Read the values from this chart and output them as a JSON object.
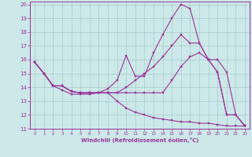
{
  "background_color": "#cce8e8",
  "grid_color": "#aacccc",
  "line_color": "#993399",
  "xlabel": "Windchill (Refroidissement éolien,°C)",
  "xlim": [
    -0.5,
    23.5
  ],
  "ylim": [
    11,
    20.2
  ],
  "xticks": [
    0,
    1,
    2,
    3,
    4,
    5,
    6,
    7,
    8,
    9,
    10,
    11,
    12,
    13,
    14,
    15,
    16,
    17,
    18,
    19,
    20,
    21,
    22,
    23
  ],
  "yticks": [
    11,
    12,
    13,
    14,
    15,
    16,
    17,
    18,
    19,
    20
  ],
  "curves": [
    {
      "x": [
        0,
        1,
        2,
        3,
        4,
        5,
        6,
        7,
        8,
        9,
        10,
        11,
        12,
        13,
        14,
        15,
        16,
        17,
        18,
        19,
        20,
        21,
        22,
        23
      ],
      "y": [
        15.8,
        15.0,
        14.1,
        13.8,
        13.5,
        13.5,
        13.5,
        13.6,
        13.9,
        14.5,
        16.3,
        14.8,
        14.8,
        16.5,
        17.8,
        19.0,
        20.0,
        19.7,
        17.2,
        16.0,
        15.1,
        12.0,
        12.0,
        11.2
      ]
    },
    {
      "x": [
        0,
        1,
        2,
        3,
        4,
        5,
        6,
        7,
        8,
        9,
        10,
        11,
        12,
        13,
        14,
        15,
        16,
        17,
        18,
        19,
        20,
        21,
        22,
        23
      ],
      "y": [
        15.8,
        15.0,
        14.1,
        14.1,
        13.7,
        13.6,
        13.6,
        13.6,
        13.6,
        13.6,
        14.0,
        14.5,
        15.0,
        15.5,
        16.2,
        17.0,
        17.8,
        17.2,
        17.2,
        16.0,
        15.1,
        12.0,
        12.0,
        11.2
      ]
    },
    {
      "x": [
        0,
        1,
        2,
        3,
        4,
        5,
        6,
        7,
        8,
        9,
        10,
        11,
        12,
        13,
        14,
        15,
        16,
        17,
        18,
        19,
        20,
        21,
        22,
        23
      ],
      "y": [
        15.8,
        15.0,
        14.1,
        14.1,
        13.7,
        13.6,
        13.6,
        13.6,
        13.6,
        13.6,
        13.6,
        13.6,
        13.6,
        13.6,
        13.6,
        14.5,
        15.5,
        16.2,
        16.5,
        16.0,
        16.0,
        15.1,
        12.0,
        11.2
      ]
    },
    {
      "x": [
        0,
        1,
        2,
        3,
        4,
        5,
        6,
        7,
        8,
        9,
        10,
        11,
        12,
        13,
        14,
        15,
        16,
        17,
        18,
        19,
        20,
        21,
        22,
        23
      ],
      "y": [
        15.8,
        15.0,
        14.1,
        14.1,
        13.7,
        13.6,
        13.6,
        13.6,
        13.6,
        13.0,
        12.5,
        12.2,
        12.0,
        11.8,
        11.7,
        11.6,
        11.5,
        11.5,
        11.4,
        11.4,
        11.3,
        11.2,
        11.2,
        11.2
      ]
    }
  ]
}
